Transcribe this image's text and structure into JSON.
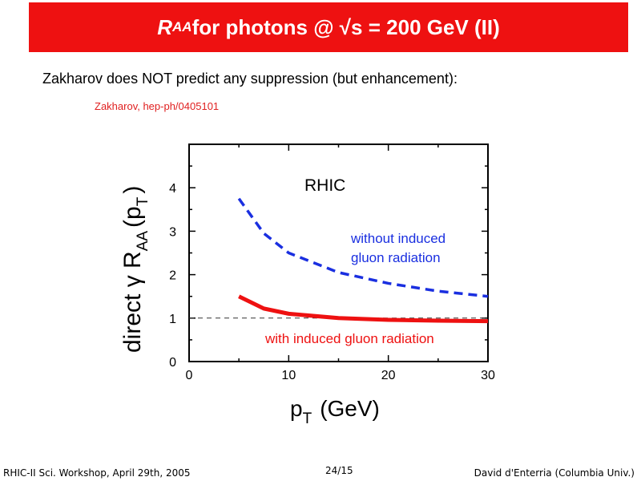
{
  "slide": {
    "title_r": "R",
    "title_sub": "AA",
    "title_rest": " for photons @ √s = 200 GeV (II)",
    "intro": "Zakharov does NOT predict any suppression (but enhancement):",
    "citation": "Zakharov, hep-ph/0405101",
    "footer_left": "RHIC-II Sci. Workshop, April 29th, 2005",
    "footer_center": "24/15",
    "footer_right": "David d'Enterria (Columbia Univ.)"
  },
  "chart_data": {
    "type": "line",
    "annotation": "RHIC",
    "xlabel_main": "p",
    "xlabel_sub": "T",
    "xlabel_unit": "(GeV)",
    "ylabel_prefix": "direct γ R",
    "ylabel_sub": "AA",
    "ylabel_suffix": "(p",
    "ylabel_sub2": "T",
    "ylabel_close": ")",
    "xlim": [
      0,
      30
    ],
    "ylim": [
      0,
      5
    ],
    "xticks": [
      0,
      10,
      20,
      30
    ],
    "yticks": [
      0,
      1,
      2,
      3,
      4
    ],
    "reference_line": 1,
    "series": [
      {
        "name_line1": "without induced",
        "name_line2": "gluon radiation",
        "color": "#1a2fe0",
        "style": "dashed",
        "x": [
          5,
          7.5,
          10,
          15,
          20,
          25,
          30
        ],
        "y": [
          3.75,
          2.95,
          2.5,
          2.05,
          1.8,
          1.62,
          1.5
        ]
      },
      {
        "name_line1": "with induced gluon radiation",
        "name_line2": "",
        "color": "#ee1111",
        "style": "solid",
        "x": [
          5,
          7.5,
          10,
          15,
          20,
          25,
          30
        ],
        "y": [
          1.5,
          1.22,
          1.1,
          1.0,
          0.96,
          0.94,
          0.93
        ]
      }
    ]
  }
}
